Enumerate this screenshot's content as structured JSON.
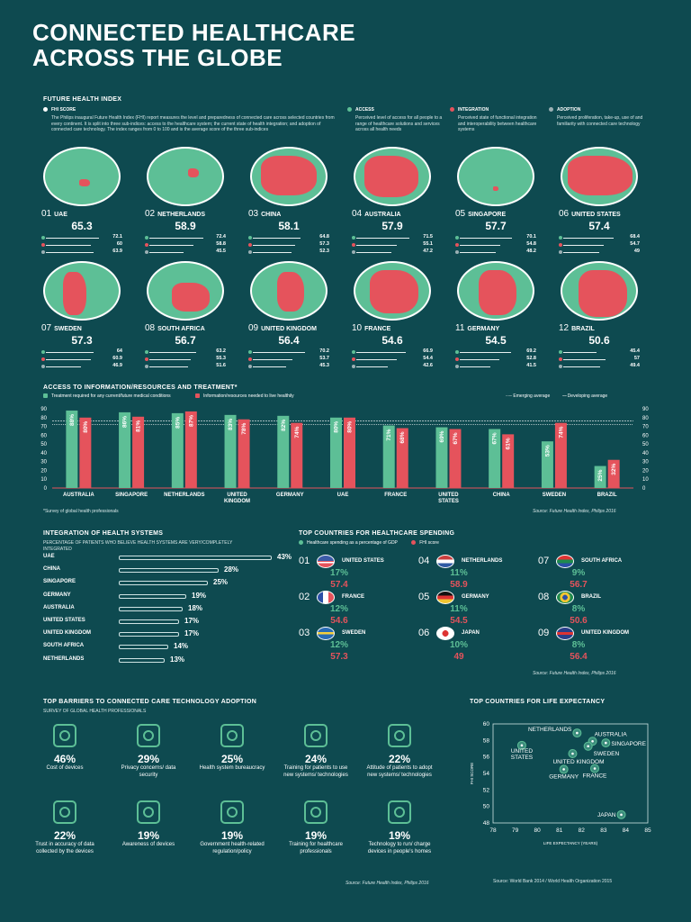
{
  "title": [
    "CONNECTED HEALTHCARE",
    "ACROSS THE GLOBE"
  ],
  "fhi": {
    "section": "FUTURE HEALTH INDEX",
    "score_label": "FHI SCORE",
    "score_desc": "The Philips inaugural Future Health Index (FHI) report measures the level and preparedness of connected care across selected countries from every continent. It is split into three sub-indices: access to the healthcare system; the current state of health integration; and adoption of connected care technology. The index ranges from 0 to 100 and is the average score of the three sub-indices",
    "access_label": "ACCESS",
    "access_desc": "Perceived level of access for all people to a range of healthcare solutions and services across all health needs",
    "integration_label": "INTEGRATION",
    "integration_desc": "Perceived state of functional integration and interoperability between healthcare systems",
    "adoption_label": "ADOPTION",
    "adoption_desc": "Perceived proliferation, take-up, use of and familiarity with connected care technology",
    "countries": [
      {
        "rank": "01",
        "name": "UAE",
        "score": "65.3",
        "access": "72.1",
        "integration": "60",
        "adoption": "63.9"
      },
      {
        "rank": "02",
        "name": "NETHERLANDS",
        "score": "58.9",
        "access": "72.4",
        "integration": "58.8",
        "adoption": "45.5"
      },
      {
        "rank": "03",
        "name": "CHINA",
        "score": "58.1",
        "access": "64.8",
        "integration": "57.3",
        "adoption": "52.3"
      },
      {
        "rank": "04",
        "name": "AUSTRALIA",
        "score": "57.9",
        "access": "71.5",
        "integration": "55.1",
        "adoption": "47.2"
      },
      {
        "rank": "05",
        "name": "SINGAPORE",
        "score": "57.7",
        "access": "70.1",
        "integration": "54.8",
        "adoption": "48.2"
      },
      {
        "rank": "06",
        "name": "UNITED STATES",
        "score": "57.4",
        "access": "68.4",
        "integration": "54.7",
        "adoption": "49"
      },
      {
        "rank": "07",
        "name": "SWEDEN",
        "score": "57.3",
        "access": "64",
        "integration": "60.9",
        "adoption": "46.9"
      },
      {
        "rank": "08",
        "name": "SOUTH AFRICA",
        "score": "56.7",
        "access": "63.2",
        "integration": "55.3",
        "adoption": "51.6"
      },
      {
        "rank": "09",
        "name": "UNITED KINGDOM",
        "score": "56.4",
        "access": "70.2",
        "integration": "53.7",
        "adoption": "45.3"
      },
      {
        "rank": "10",
        "name": "FRANCE",
        "score": "54.6",
        "access": "66.9",
        "integration": "54.4",
        "adoption": "42.6"
      },
      {
        "rank": "11",
        "name": "GERMANY",
        "score": "54.5",
        "access": "69.2",
        "integration": "52.8",
        "adoption": "41.5"
      },
      {
        "rank": "12",
        "name": "BRAZIL",
        "score": "50.6",
        "access": "45.4",
        "integration": "57",
        "adoption": "49.4"
      }
    ]
  },
  "access_chart": {
    "title": "ACCESS TO INFORMATION/RESOURCES AND TREATMENT*",
    "legend_treatment": "Treatment required for any current/future medical conditions",
    "legend_info": "Information/resources needed to live healthily",
    "legend_emerging": "Emerging average",
    "legend_developing": "Developing average",
    "footnote": "*Survey of global health professionals",
    "source": "Source: Future Health Index, Philips 2016"
  },
  "health_systems": {
    "title": "INTEGRATION OF HEALTH SYSTEMS",
    "subtitle": "PERCENTAGE OF PATIENTS WHO BELIEVE HEALTH SYSTEMS ARE VERY/COMPLETELY INTEGRATED"
  },
  "spending": {
    "title": "TOP COUNTRIES FOR HEALTHCARE SPENDING",
    "legend_gdp": "Healthcare spending as a percentage of GDP",
    "legend_fhi": "FHI score",
    "source": "Source: Future Health Index, Philips 2016",
    "items": [
      {
        "rank": "01",
        "name": "UNITED STATES",
        "gdp": "17%",
        "fhi": "57.4"
      },
      {
        "rank": "02",
        "name": "FRANCE",
        "gdp": "12%",
        "fhi": "54.6"
      },
      {
        "rank": "03",
        "name": "SWEDEN",
        "gdp": "12%",
        "fhi": "57.3"
      },
      {
        "rank": "04",
        "name": "NETHERLANDS",
        "gdp": "11%",
        "fhi": "58.9"
      },
      {
        "rank": "05",
        "name": "GERMANY",
        "gdp": "11%",
        "fhi": "54.5"
      },
      {
        "rank": "06",
        "name": "JAPAN",
        "gdp": "10%",
        "fhi": "49"
      },
      {
        "rank": "07",
        "name": "SOUTH AFRICA",
        "gdp": "9%",
        "fhi": "56.7"
      },
      {
        "rank": "08",
        "name": "BRAZIL",
        "gdp": "8%",
        "fhi": "50.6"
      },
      {
        "rank": "09",
        "name": "UNITED KINGDOM",
        "gdp": "8%",
        "fhi": "56.4"
      }
    ]
  },
  "barriers": {
    "title": "TOP BARRIERS TO CONNECTED CARE TECHNOLOGY ADOPTION",
    "subtitle": "SURVEY OF GLOBAL HEALTH PROFESSIONALS",
    "source": "Source: Future Health Index, Philips 2016",
    "items": [
      {
        "pct": "46%",
        "label": "Cost of devices",
        "icon": "money-bag-icon"
      },
      {
        "pct": "29%",
        "label": "Privacy concerns/ data security",
        "icon": "document-search-icon"
      },
      {
        "pct": "25%",
        "label": "Health system bureaucracy",
        "icon": "gavel-icon"
      },
      {
        "pct": "24%",
        "label": "Training for patients to use new systems/ technologies",
        "icon": "head-gears-icon"
      },
      {
        "pct": "22%",
        "label": "Attitude of patients to adopt new systems/ technologies",
        "icon": "head-target-icon"
      },
      {
        "pct": "22%",
        "label": "Trust in accuracy of data collected by the devices",
        "icon": "chart-icon"
      },
      {
        "pct": "19%",
        "label": "Awareness of devices",
        "icon": "devices-icon"
      },
      {
        "pct": "19%",
        "label": "Government health-related regulation/policy",
        "icon": "government-building-icon"
      },
      {
        "pct": "19%",
        "label": "Training for healthcare professionals",
        "icon": "head-medical-icon"
      },
      {
        "pct": "19%",
        "label": "Technology to run/ charge devices in people's homes",
        "icon": "plug-icon"
      }
    ]
  },
  "chart_data": [
    {
      "type": "bar",
      "title": "ACCESS TO INFORMATION/RESOURCES AND TREATMENT*",
      "categories": [
        "AUSTRALIA",
        "SINGAPORE",
        "NETHERLANDS",
        "UNITED KINGDOM",
        "GERMANY",
        "UAE",
        "FRANCE",
        "UNITED STATES",
        "CHINA",
        "SWEDEN",
        "BRAZIL"
      ],
      "series": [
        {
          "name": "Treatment required for any current/future medical conditions",
          "values": [
            88,
            86,
            85,
            83,
            82,
            80,
            71,
            69,
            67,
            53,
            25
          ],
          "color": "#5dbf96"
        },
        {
          "name": "Information/resources needed to live healthily",
          "values": [
            80,
            81,
            87,
            78,
            74,
            80,
            68,
            67,
            61,
            74,
            32
          ],
          "color": "#e5535c"
        }
      ],
      "ylim": [
        0,
        90
      ],
      "yticks": [
        0,
        10,
        20,
        30,
        40,
        50,
        60,
        70,
        80,
        90
      ],
      "reference_lines": [
        {
          "name": "Emerging average",
          "value": 76
        },
        {
          "name": "Developing average",
          "value": 72
        }
      ],
      "grid": false
    },
    {
      "type": "bar",
      "orientation": "horizontal",
      "title": "INTEGRATION OF HEALTH SYSTEMS",
      "categories": [
        "UAE",
        "CHINA",
        "SINGAPORE",
        "GERMANY",
        "AUSTRALIA",
        "UNITED STATES",
        "UNITED KINGDOM",
        "SOUTH AFRICA",
        "NETHERLANDS"
      ],
      "values": [
        43,
        28,
        25,
        19,
        18,
        17,
        17,
        14,
        13
      ],
      "labels": [
        "43%",
        "28%",
        "25%",
        "19%",
        "18%",
        "17%",
        "17%",
        "14%",
        "13%"
      ]
    },
    {
      "type": "scatter",
      "title": "TOP COUNTRIES FOR LIFE EXPECTANCY",
      "xlabel": "LIFE EXPECTANCY (YEARS)",
      "ylabel": "FHI SCORE",
      "xlim": [
        78,
        85
      ],
      "ylim": [
        48,
        60
      ],
      "xticks": [
        78,
        79,
        80,
        81,
        82,
        83,
        84,
        85
      ],
      "yticks": [
        48,
        50,
        52,
        54,
        56,
        58,
        60
      ],
      "points": [
        {
          "label": "NETHERLANDS",
          "x": 81.8,
          "y": 58.9
        },
        {
          "label": "AUSTRALIA",
          "x": 82.5,
          "y": 57.9
        },
        {
          "label": "SINGAPORE",
          "x": 83.1,
          "y": 57.7
        },
        {
          "label": "SWEDEN",
          "x": 82.3,
          "y": 57.3
        },
        {
          "label": "UNITED STATES",
          "x": 79.3,
          "y": 57.4
        },
        {
          "label": "UNITED KINGDOM",
          "x": 81.6,
          "y": 56.4
        },
        {
          "label": "GERMANY",
          "x": 81.2,
          "y": 54.5
        },
        {
          "label": "FRANCE",
          "x": 82.6,
          "y": 54.6
        },
        {
          "label": "JAPAN",
          "x": 83.8,
          "y": 49
        }
      ],
      "source": "Source: World Bank 2014 / World Health Organization 2015"
    }
  ],
  "colors": {
    "background": "#0e4a50",
    "green": "#5dbf96",
    "red": "#e5535c",
    "grey": "#9bb0b4"
  }
}
